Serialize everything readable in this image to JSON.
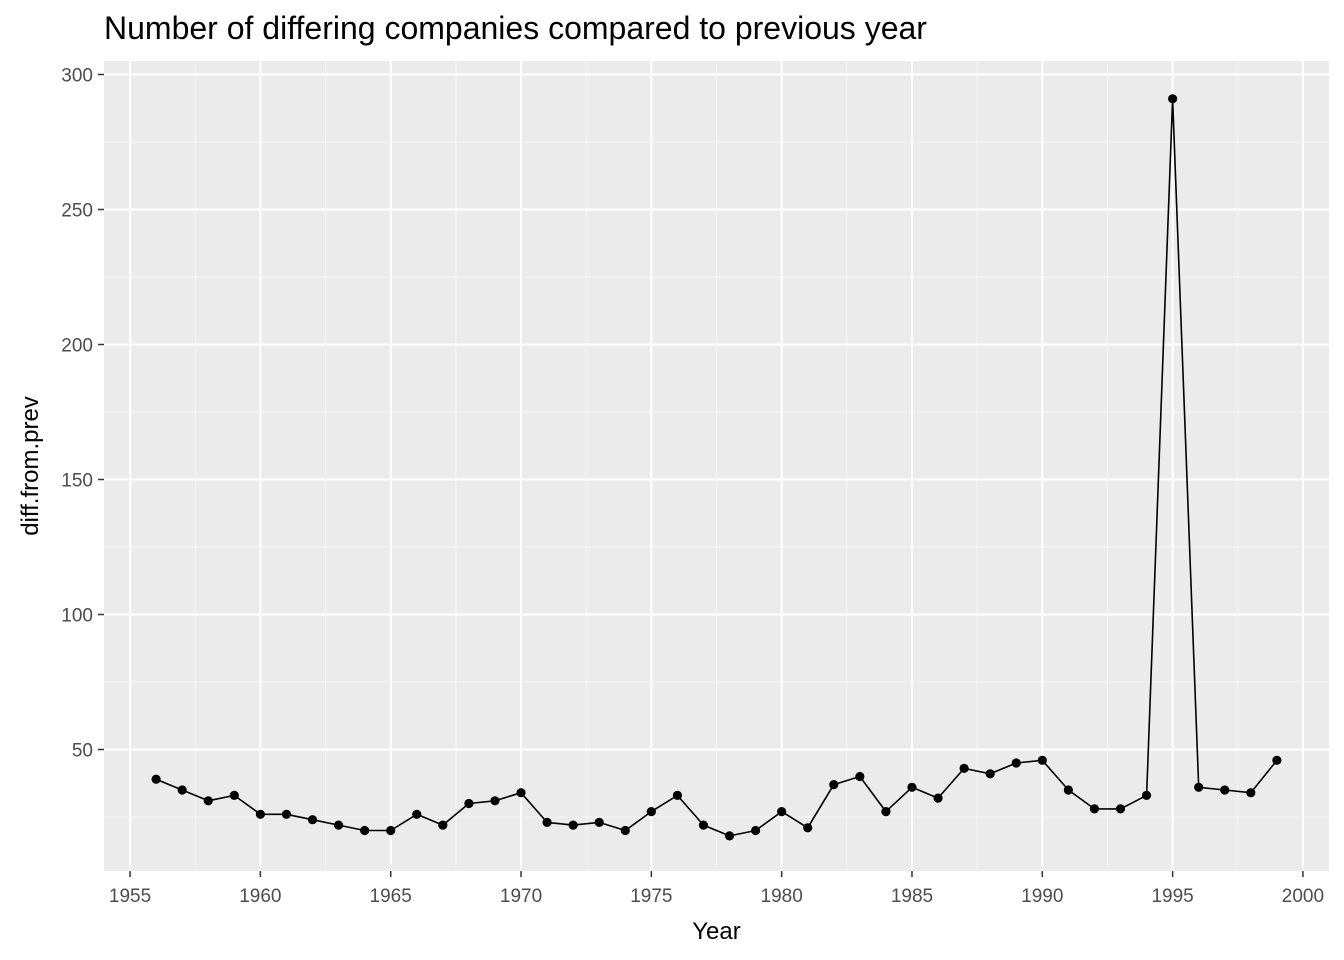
{
  "chart_data": {
    "type": "line",
    "title": "Number of differing companies compared to previous year",
    "xlabel": "Year",
    "ylabel": "diff.from.prev",
    "xlim": [
      1954,
      2001
    ],
    "ylim": [
      5,
      305
    ],
    "x_ticks": [
      1955,
      1960,
      1965,
      1970,
      1975,
      1980,
      1985,
      1990,
      1995,
      2000
    ],
    "y_ticks": [
      50,
      100,
      150,
      200,
      250,
      300
    ],
    "grid": true,
    "legend": "none",
    "markers": true,
    "series": [
      {
        "x": [
          1956,
          1957,
          1958,
          1959,
          1960,
          1961,
          1962,
          1963,
          1964,
          1965,
          1966,
          1967,
          1968,
          1969,
          1970,
          1971,
          1972,
          1973,
          1974,
          1975,
          1976,
          1977,
          1978,
          1979,
          1980,
          1981,
          1982,
          1983,
          1984,
          1985,
          1986,
          1987,
          1988,
          1989,
          1990,
          1991,
          1992,
          1993,
          1994,
          1995,
          1996,
          1997,
          1998,
          1999
        ],
        "values": [
          39,
          35,
          31,
          33,
          26,
          26,
          24,
          22,
          20,
          20,
          26,
          22,
          30,
          31,
          34,
          23,
          22,
          23,
          20,
          27,
          33,
          22,
          18,
          20,
          27,
          21,
          37,
          40,
          27,
          36,
          32,
          43,
          41,
          45,
          46,
          35,
          28,
          28,
          33,
          291,
          36,
          35,
          34,
          46
        ]
      }
    ],
    "colors": {
      "panel_background": "#ebebeb",
      "grid_major": "#ffffff",
      "line": "#000000",
      "point": "#000000",
      "tick_text": "#4d4d4d"
    }
  }
}
